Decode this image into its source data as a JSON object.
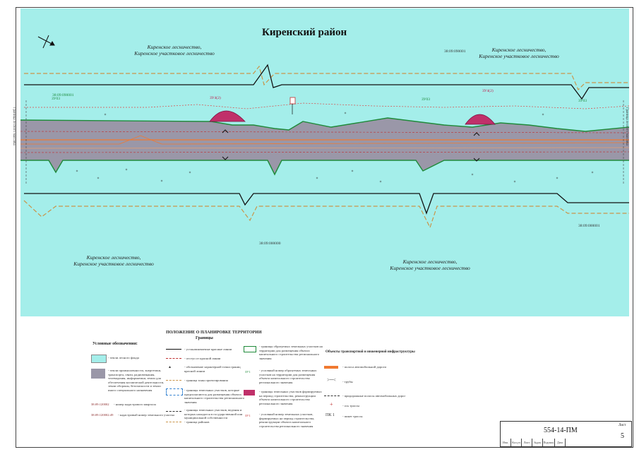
{
  "map": {
    "title": "Киренский район",
    "forest_labels": [
      "Киренское лесничество,",
      "Киренское участковое лесничество"
    ],
    "cadastral_codes": [
      "38:09:090001",
      "38:09:000000",
      "38:09:090001",
      "38:09:000001"
    ],
    "zone_tags_green": [
      "ЗУ03",
      "ЗУ03",
      "ЗУ03"
    ],
    "zone_tags_red": [
      "ЗУ4(2)",
      "ЗУ4(2)"
    ],
    "side_note": "Граница лесного массива",
    "colors": {
      "background": "#a4eeea",
      "road_band": "#9a97a8",
      "red_zone": "#c0306a",
      "border_green": "#1f8a3a",
      "orange": "#f07a30",
      "dashed_brown": "#c9954a"
    }
  },
  "legend": {
    "conventions_title": "Условные обозначения:",
    "forest_fund": "- земли лесного фонда",
    "industry_lands": "- земли промышленности, энергетики, транспорта, связи, радиовещания, телевидения, информатики, земли для обеспечения космической деятельности, земли обороны, безопасности и земли иного специального назначения",
    "cadastral_quarter_code": "38:09:120002",
    "cadastral_quarter_text": "- номер кадастрового квартала",
    "land_plot_code": "38:09:120002:49",
    "land_plot_text": "- кадастровый номер земельного участка",
    "planning_title": "ПОЛОЖЕНИЕ О ПЛАНИРОВКЕ ТЕРРИТОРИИ",
    "boundaries_title": "Границы",
    "red_lines": "- устанавливаемые красные линии",
    "building_setback": "- отступ от красной линии",
    "red_line_turn": "- обозначение характерной точки границ красной линии",
    "design_area": "- граница зоны проектирования",
    "plot_zones": "- границы земельных участков, которые предполагаются для размещения объекта капитального строительства регионального значения",
    "public_lands": "- границы земельных участков, ведения и которых находятся в государственной или муниципальной собственности",
    "district_boundary": "- граница районов",
    "formed_plots": "- границы образуемых земельных участков на территории для размещения объекта капитального строительства регионального значения",
    "cond_number": "- условный номер образуемых земельных участков на территории для размещения объекта капитального строительства регионального значения",
    "cond_tag_1": "ЗУ1",
    "temporary_plots": "- границы земельных участков формируемых на период строительства, реконструкции объекта капитального строительства регионального значения",
    "cond_number_temp": "- условный номер земельных участков, формируемых на период строительства, реконструкции объекта капитального строительства регионального значения",
    "cond_tag_2": "ЗУ1",
    "transport_title": "Объекты транспортной и инженерной инфраструктуры",
    "highway": "- полоса автомобильной дороги",
    "pipes": "- трубы",
    "existing_roads": "- придорожные полосы автомобильных дорог",
    "route_axis": "- ось трассы",
    "pk_tag": "ПК 1",
    "pk_text": "- пикет трассы"
  },
  "stamp": {
    "code": "554-14-ПМ",
    "sheet_label": "Лист",
    "sheet_number": "5",
    "columns": [
      "Изм.",
      "Кол.уч",
      "Лист",
      "№док",
      "Подпись",
      "Дата"
    ]
  }
}
